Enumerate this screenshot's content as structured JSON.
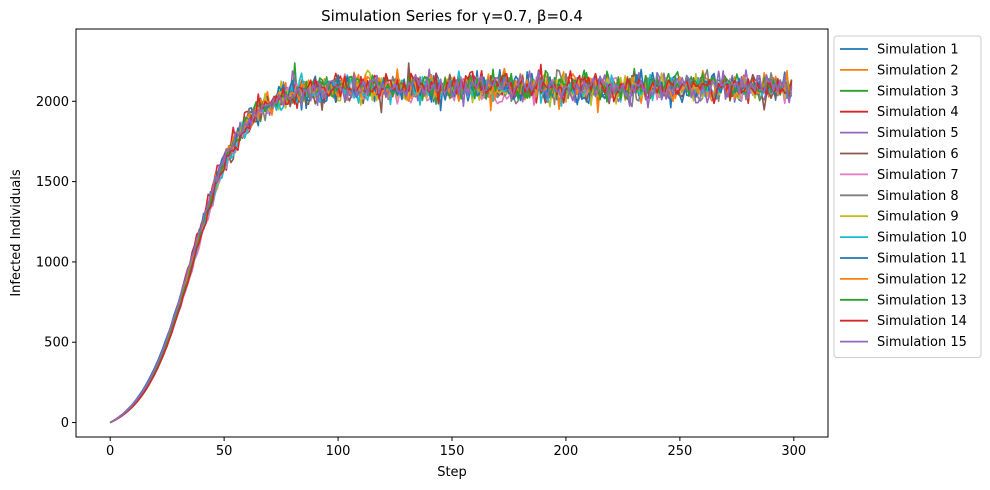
{
  "chart_data": {
    "type": "line",
    "title": "Simulation Series for γ=0.7, β=0.4",
    "xlabel": "Step",
    "ylabel": "Infected Individuals",
    "xlim": [
      -15,
      315
    ],
    "ylim": [
      -90,
      2450
    ],
    "xticks": [
      0,
      50,
      100,
      150,
      200,
      250,
      300
    ],
    "yticks": [
      0,
      500,
      1000,
      1500,
      2000
    ],
    "grid": false,
    "legend_position": "outside-right",
    "n_steps": 300,
    "series": [
      {
        "name": "Simulation 1",
        "color": "#1f77b4",
        "plateau": 2170
      },
      {
        "name": "Simulation 2",
        "color": "#ff7f0e",
        "plateau": 2170
      },
      {
        "name": "Simulation 3",
        "color": "#2ca02c",
        "plateau": 2165
      },
      {
        "name": "Simulation 4",
        "color": "#d62728",
        "plateau": 2170
      },
      {
        "name": "Simulation 5",
        "color": "#9467bd",
        "plateau": 2160
      },
      {
        "name": "Simulation 6",
        "color": "#8c564b",
        "plateau": 2165
      },
      {
        "name": "Simulation 7",
        "color": "#e377c2",
        "plateau": 2160
      },
      {
        "name": "Simulation 8",
        "color": "#7f7f7f",
        "plateau": 2165
      },
      {
        "name": "Simulation 9",
        "color": "#bcbd22",
        "plateau": 2170
      },
      {
        "name": "Simulation 10",
        "color": "#17becf",
        "plateau": 2160
      },
      {
        "name": "Simulation 11",
        "color": "#1f77b4",
        "plateau": 2170
      },
      {
        "name": "Simulation 12",
        "color": "#ff7f0e",
        "plateau": 2175
      },
      {
        "name": "Simulation 13",
        "color": "#2ca02c",
        "plateau": 2170
      },
      {
        "name": "Simulation 14",
        "color": "#d62728",
        "plateau": 2165
      },
      {
        "name": "Simulation 15",
        "color": "#9467bd",
        "plateau": 2165
      }
    ]
  }
}
